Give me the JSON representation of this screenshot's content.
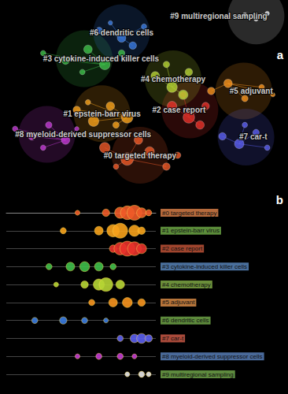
{
  "chart_data": [
    {
      "type": "network",
      "panel_label": "a",
      "xlim": [
        0,
        100
      ],
      "ylim": [
        0,
        100
      ],
      "tick_labels": false,
      "clusters": [
        {
          "label": "#0 targeted therapy",
          "color": "#f05a28",
          "x": [
            36,
            44,
            52,
            58,
            48,
            62,
            40
          ],
          "y": [
            24,
            18,
            22,
            14,
            28,
            20,
            14
          ],
          "size": [
            8,
            10,
            7,
            5,
            6,
            4,
            3
          ]
        },
        {
          "label": "#1 epstein-barr virus",
          "color": "#f7a21b",
          "x": [
            26,
            32,
            38,
            44,
            30,
            40
          ],
          "y": [
            44,
            38,
            46,
            40,
            48,
            36
          ],
          "size": [
            5,
            8,
            6,
            9,
            3,
            4
          ]
        },
        {
          "label": "#2 case report",
          "color": "#e8322b",
          "x": [
            60,
            66,
            72,
            64,
            70
          ],
          "y": [
            46,
            40,
            46,
            52,
            36
          ],
          "size": [
            7,
            9,
            5,
            4,
            6
          ]
        },
        {
          "label": "#3 cytokine-induced killer cells",
          "color": "#3fbf4a",
          "x": [
            14,
            22,
            30,
            36,
            42,
            28
          ],
          "y": [
            74,
            70,
            76,
            68,
            74,
            64
          ],
          "size": [
            3,
            5,
            6,
            8,
            4,
            3
          ]
        },
        {
          "label": "#4 chemotherapy",
          "color": "#b6d534",
          "x": [
            54,
            60,
            66,
            58,
            64
          ],
          "y": [
            62,
            56,
            64,
            68,
            52
          ],
          "size": [
            6,
            8,
            5,
            4,
            7
          ]
        },
        {
          "label": "#5 adjuvant",
          "color": "#f7931e",
          "x": [
            74,
            80,
            86,
            92,
            96
          ],
          "y": [
            54,
            58,
            50,
            56,
            52
          ],
          "size": [
            5,
            6,
            4,
            3,
            2
          ]
        },
        {
          "label": "#6 dendritic cells",
          "color": "#3a7be0",
          "x": [
            34,
            42,
            50,
            46,
            38
          ],
          "y": [
            86,
            82,
            88,
            78,
            90
          ],
          "size": [
            4,
            6,
            3,
            5,
            2
          ]
        },
        {
          "label": "#7 car-t",
          "color": "#5b5ff0",
          "x": [
            78,
            84,
            90,
            94,
            86
          ],
          "y": [
            30,
            26,
            32,
            24,
            36
          ],
          "size": [
            5,
            7,
            4,
            3,
            3
          ]
        },
        {
          "label": "#8 myeloid-derived suppressor cells",
          "color": "#c23ad4",
          "x": [
            4,
            10,
            16,
            22,
            14,
            26
          ],
          "y": [
            34,
            30,
            36,
            28,
            24,
            34
          ],
          "size": [
            3,
            5,
            4,
            6,
            3,
            2
          ]
        },
        {
          "label": "#9 multiregional sampling",
          "color": "#e8e8e8",
          "x": [
            86,
            90,
            94
          ],
          "y": [
            94,
            92,
            95
          ],
          "size": [
            3,
            2,
            2
          ]
        }
      ]
    },
    {
      "type": "timeline",
      "panel_label": "b",
      "xlim": [
        2000,
        2021
      ],
      "tick_labels": false,
      "rows": [
        {
          "label": "#0 targeted therapy",
          "color": "#f05a28",
          "label_color": "#b56a3c",
          "years": [
            2010,
            2014,
            2016,
            2017,
            2018,
            2019,
            2020
          ],
          "size": [
            2,
            4,
            7,
            9,
            10,
            6,
            3
          ]
        },
        {
          "label": "#1 epstein-barr virus",
          "color": "#f7a21b",
          "label_color": "#5b8c3a",
          "years": [
            2008,
            2013,
            2015,
            2016,
            2018,
            2019
          ],
          "size": [
            3,
            5,
            8,
            10,
            7,
            4
          ]
        },
        {
          "label": "#2 case report",
          "color": "#e8322b",
          "label_color": "#a0452e",
          "years": [
            2015,
            2016,
            2017,
            2018,
            2019
          ],
          "size": [
            4,
            8,
            10,
            9,
            6
          ]
        },
        {
          "label": "#3 cytokine-induced killer cells",
          "color": "#3fbf4a",
          "label_color": "#4a6f9c",
          "years": [
            2006,
            2009,
            2011,
            2013,
            2015
          ],
          "size": [
            3,
            5,
            6,
            5,
            3
          ]
        },
        {
          "label": "#4 chemotherapy",
          "color": "#b6d534",
          "label_color": "#6b8e3a",
          "years": [
            2007,
            2011,
            2013,
            2014,
            2016
          ],
          "size": [
            2,
            4,
            7,
            9,
            5
          ]
        },
        {
          "label": "#5 adjuvant",
          "color": "#f7931e",
          "label_color": "#b5743a",
          "years": [
            2012,
            2015,
            2017,
            2019
          ],
          "size": [
            3,
            5,
            6,
            4
          ]
        },
        {
          "label": "#6 dendritic cells",
          "color": "#3a7be0",
          "label_color": "#5d8a3c",
          "years": [
            2004,
            2008,
            2011,
            2014
          ],
          "size": [
            3,
            4,
            3,
            2
          ]
        },
        {
          "label": "#7 car-t",
          "color": "#5b5ff0",
          "label_color": "#a84a3a",
          "years": [
            2016,
            2018,
            2019,
            2020
          ],
          "size": [
            3,
            5,
            6,
            4
          ]
        },
        {
          "label": "#8 myeloid-derived suppressor cells",
          "color": "#c23ad4",
          "label_color": "#4a6a9a",
          "years": [
            2010,
            2013,
            2016,
            2018
          ],
          "size": [
            2,
            3,
            3,
            2
          ]
        },
        {
          "label": "#9 multiregional sampling",
          "color": "#e8e8e8",
          "label_color": "#5e8a3e",
          "years": [
            2017,
            2019,
            2020
          ],
          "size": [
            2,
            3,
            2
          ]
        }
      ]
    }
  ]
}
